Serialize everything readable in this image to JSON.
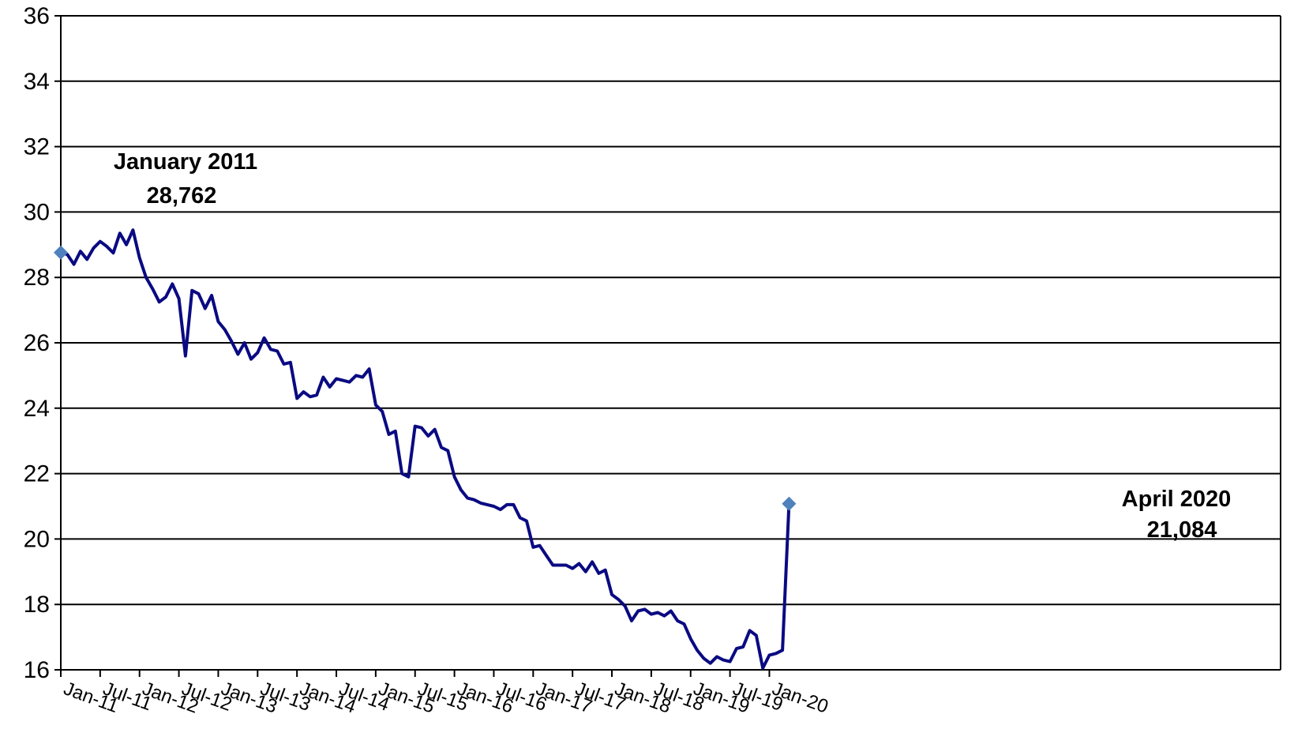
{
  "chart_data": {
    "type": "line",
    "title": "",
    "xlabel": "",
    "ylabel": "",
    "ylim": [
      16,
      36
    ],
    "yticks": [
      "16",
      "18",
      "20",
      "22",
      "24",
      "26",
      "28",
      "30",
      "32",
      "34",
      "36"
    ],
    "xtick_labels": [
      "Jan-11",
      "Jul-11",
      "Jan-12",
      "Jul-12",
      "Jan-13",
      "Jul-13",
      "Jan-14",
      "Jul-14",
      "Jan-15",
      "Jul-15",
      "Jan-16",
      "Jul-16",
      "Jan-17",
      "Jul-17",
      "Jan-18",
      "Jul-18",
      "Jan-19",
      "Jul-19",
      "Jan-20"
    ],
    "grid": "horizontal",
    "legend": "none",
    "line_color": "#0a0a82",
    "marker_color": "#4f81bd",
    "series": [
      {
        "x_start": "Jan-11",
        "frequency": "monthly",
        "values": [
          28.76,
          28.7,
          28.4,
          28.8,
          28.55,
          28.9,
          29.1,
          28.95,
          28.75,
          29.35,
          29.0,
          29.45,
          28.6,
          28.0,
          27.65,
          27.25,
          27.4,
          27.8,
          27.35,
          25.6,
          27.6,
          27.5,
          27.05,
          27.45,
          26.65,
          26.4,
          26.05,
          25.65,
          26.0,
          25.5,
          25.7,
          26.15,
          25.8,
          25.75,
          25.35,
          25.4,
          24.3,
          24.5,
          24.35,
          24.4,
          24.95,
          24.65,
          24.9,
          24.85,
          24.8,
          25.0,
          24.95,
          25.2,
          24.1,
          23.9,
          23.2,
          23.3,
          22.0,
          21.9,
          23.45,
          23.4,
          23.15,
          23.35,
          22.8,
          22.7,
          21.9,
          21.5,
          21.25,
          21.2,
          21.1,
          21.05,
          21.0,
          20.9,
          21.05,
          21.05,
          20.65,
          20.55,
          19.75,
          19.8,
          19.5,
          19.2,
          19.2,
          19.2,
          19.1,
          19.25,
          19.0,
          19.3,
          18.95,
          19.05,
          18.3,
          18.15,
          17.95,
          17.5,
          17.8,
          17.85,
          17.7,
          17.75,
          17.65,
          17.8,
          17.5,
          17.4,
          16.95,
          16.6,
          16.35,
          16.2,
          16.4,
          16.3,
          16.25,
          16.65,
          16.7,
          17.2,
          17.05,
          16.05,
          16.45,
          16.5,
          16.6,
          21.08
        ]
      }
    ],
    "annotations": [
      {
        "line1": "January 2011",
        "line2": "28,762",
        "x": "Jan-11",
        "y": 28.762
      },
      {
        "line1": "April 2020",
        "line2": "21,084",
        "x": "Apr-20",
        "y": 21.084
      }
    ]
  }
}
